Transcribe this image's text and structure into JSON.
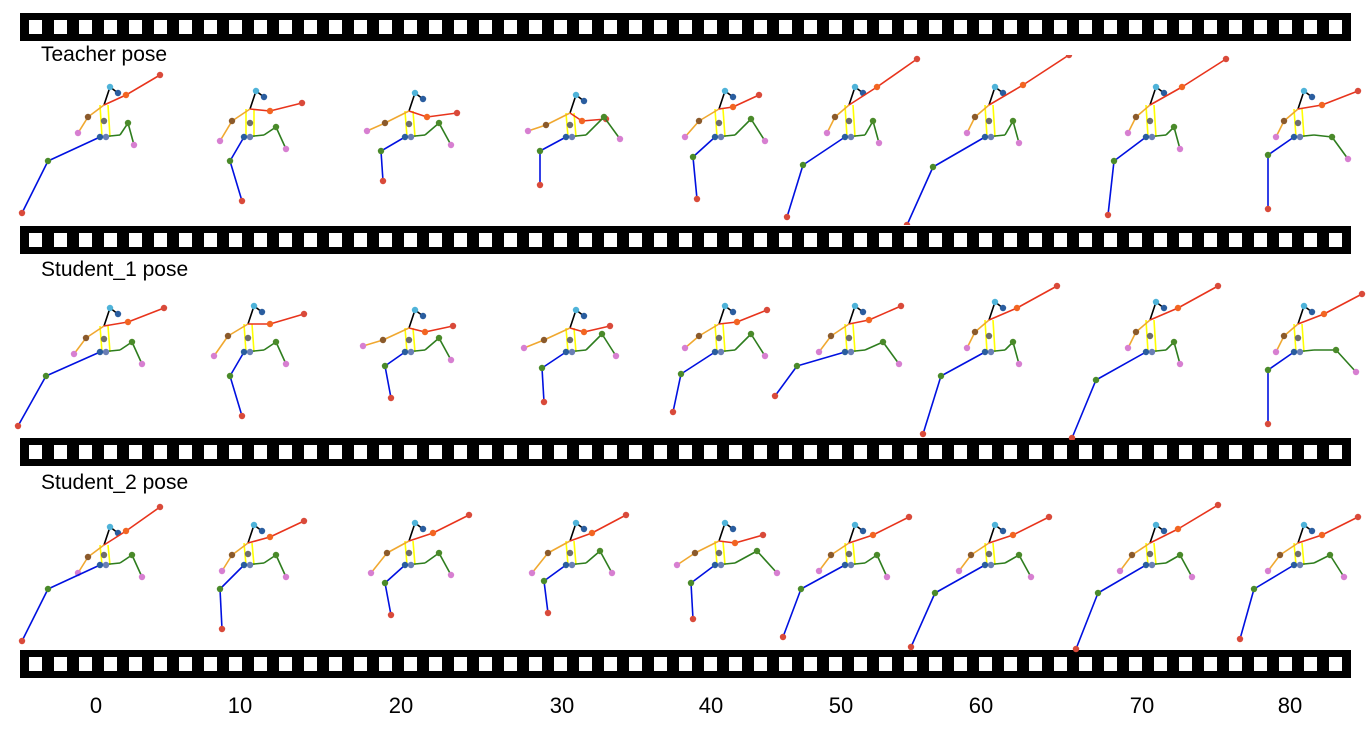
{
  "rows": [
    {
      "label": "Teacher pose"
    },
    {
      "label": "Student_1 pose"
    },
    {
      "label": "Student_2 pose"
    }
  ],
  "frames": [
    "0",
    "10",
    "20",
    "30",
    "40",
    "50",
    "60",
    "70",
    "80"
  ],
  "colors": {
    "film": "#000000",
    "sprocket": "#ffffff",
    "head": "#000000",
    "spine": "#ffff00",
    "right_arm": "#e8341c",
    "left_arm": "#f0a830",
    "right_leg": "#2e7d1e",
    "left_leg": "#0010e0",
    "joint_head": "#4fb3d9",
    "joint_ear": "#2a5d9f",
    "joint_hand": "#d94a3a",
    "joint_elbow": "#f26522",
    "joint_pink": "#d77fd1",
    "joint_knee": "#6a7fb5",
    "joint_hip": "#6e6e6e",
    "joint_green": "#4a8a2a",
    "joint_brown": "#8b5a2b"
  }
}
